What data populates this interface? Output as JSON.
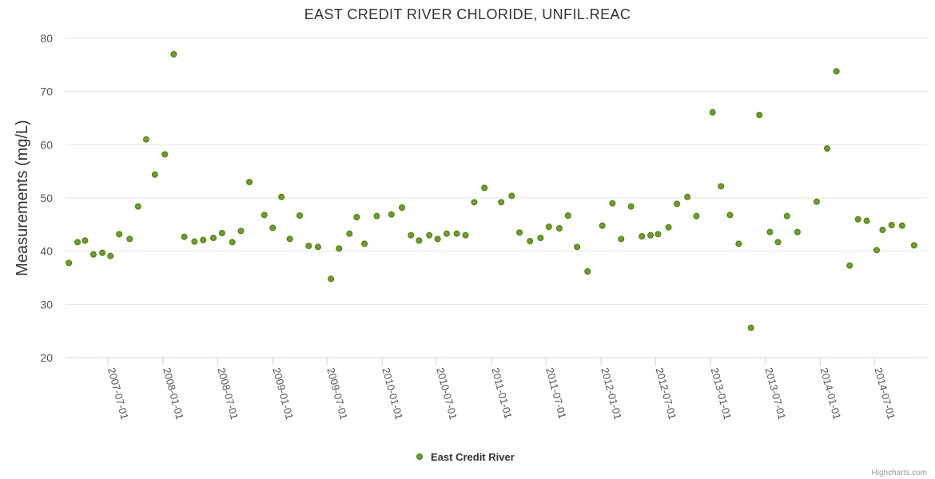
{
  "chart_data": {
    "type": "scatter",
    "title": "EAST CREDIT RIVER CHLORIDE, UNFIL.REAC",
    "ylabel": "Measurements (mg/L)",
    "xlabel": "",
    "ylim": [
      20,
      80
    ],
    "yticks": [
      20,
      30,
      40,
      50,
      60,
      70,
      80
    ],
    "xlim": [
      "2007-02-10",
      "2014-12-23"
    ],
    "xticks": [
      "2007-07-01",
      "2008-01-01",
      "2008-07-01",
      "2009-01-01",
      "2009-07-01",
      "2010-01-01",
      "2010-07-01",
      "2011-01-01",
      "2011-07-01",
      "2012-01-01",
      "2012-07-01",
      "2013-01-01",
      "2013-07-01",
      "2014-01-01",
      "2014-07-01"
    ],
    "grid": true,
    "legend_position": "bottom-center",
    "series": [
      {
        "name": "East Credit River",
        "color": "#6aa121",
        "edge_color": "#4a7a10",
        "points": [
          [
            "2007-02-21",
            37.8
          ],
          [
            "2007-03-22",
            41.7
          ],
          [
            "2007-04-16",
            42.0
          ],
          [
            "2007-05-14",
            39.4
          ],
          [
            "2007-06-13",
            39.7
          ],
          [
            "2007-07-10",
            39.1
          ],
          [
            "2007-08-08",
            43.2
          ],
          [
            "2007-09-12",
            42.3
          ],
          [
            "2007-10-10",
            48.4
          ],
          [
            "2007-11-06",
            61.0
          ],
          [
            "2007-12-05",
            54.4
          ],
          [
            "2008-01-07",
            58.2
          ],
          [
            "2008-02-06",
            77.0
          ],
          [
            "2008-03-12",
            42.7
          ],
          [
            "2008-04-15",
            41.8
          ],
          [
            "2008-05-14",
            42.1
          ],
          [
            "2008-06-17",
            42.5
          ],
          [
            "2008-07-16",
            43.4
          ],
          [
            "2008-08-19",
            41.7
          ],
          [
            "2008-09-17",
            43.8
          ],
          [
            "2008-10-15",
            53.0
          ],
          [
            "2008-12-04",
            46.8
          ],
          [
            "2009-01-01",
            44.4
          ],
          [
            "2009-01-30",
            50.2
          ],
          [
            "2009-02-27",
            42.3
          ],
          [
            "2009-04-01",
            46.7
          ],
          [
            "2009-05-01",
            41.0
          ],
          [
            "2009-06-01",
            40.8
          ],
          [
            "2009-07-14",
            34.8
          ],
          [
            "2009-08-10",
            40.5
          ],
          [
            "2009-09-14",
            43.3
          ],
          [
            "2009-10-08",
            46.4
          ],
          [
            "2009-11-03",
            41.4
          ],
          [
            "2009-12-14",
            46.6
          ],
          [
            "2010-02-01",
            46.9
          ],
          [
            "2010-03-08",
            48.2
          ],
          [
            "2010-04-07",
            43.0
          ],
          [
            "2010-05-04",
            42.0
          ],
          [
            "2010-06-07",
            43.0
          ],
          [
            "2010-07-05",
            42.3
          ],
          [
            "2010-08-04",
            43.3
          ],
          [
            "2010-09-07",
            43.3
          ],
          [
            "2010-10-06",
            43.0
          ],
          [
            "2010-11-04",
            49.2
          ],
          [
            "2010-12-08",
            51.9
          ],
          [
            "2011-02-02",
            49.2
          ],
          [
            "2011-03-09",
            50.4
          ],
          [
            "2011-04-04",
            43.5
          ],
          [
            "2011-05-09",
            41.9
          ],
          [
            "2011-06-13",
            42.5
          ],
          [
            "2011-07-11",
            44.6
          ],
          [
            "2011-08-15",
            44.3
          ],
          [
            "2011-09-13",
            46.7
          ],
          [
            "2011-10-13",
            40.8
          ],
          [
            "2011-11-17",
            36.2
          ],
          [
            "2012-01-05",
            44.8
          ],
          [
            "2012-02-08",
            49.0
          ],
          [
            "2012-03-08",
            42.3
          ],
          [
            "2012-04-10",
            48.4
          ],
          [
            "2012-05-16",
            42.8
          ],
          [
            "2012-06-14",
            43.0
          ],
          [
            "2012-07-09",
            43.2
          ],
          [
            "2012-08-13",
            44.5
          ],
          [
            "2012-09-10",
            48.9
          ],
          [
            "2012-10-15",
            50.2
          ],
          [
            "2012-11-14",
            46.6
          ],
          [
            "2013-01-07",
            66.1
          ],
          [
            "2013-02-04",
            52.2
          ],
          [
            "2013-03-06",
            46.8
          ],
          [
            "2013-04-04",
            41.4
          ],
          [
            "2013-05-15",
            25.6
          ],
          [
            "2013-06-12",
            65.6
          ],
          [
            "2013-07-17",
            43.6
          ],
          [
            "2013-08-13",
            41.7
          ],
          [
            "2013-09-12",
            46.6
          ],
          [
            "2013-10-17",
            43.6
          ],
          [
            "2013-12-20",
            49.3
          ],
          [
            "2014-01-24",
            59.3
          ],
          [
            "2014-02-24",
            73.8
          ],
          [
            "2014-04-09",
            37.3
          ],
          [
            "2014-05-07",
            46.0
          ],
          [
            "2014-06-05",
            45.7
          ],
          [
            "2014-07-08",
            40.2
          ],
          [
            "2014-07-28",
            44.0
          ],
          [
            "2014-08-27",
            44.9
          ],
          [
            "2014-10-01",
            44.8
          ],
          [
            "2014-11-10",
            41.1
          ]
        ]
      }
    ]
  },
  "credits": "Highcharts.com"
}
